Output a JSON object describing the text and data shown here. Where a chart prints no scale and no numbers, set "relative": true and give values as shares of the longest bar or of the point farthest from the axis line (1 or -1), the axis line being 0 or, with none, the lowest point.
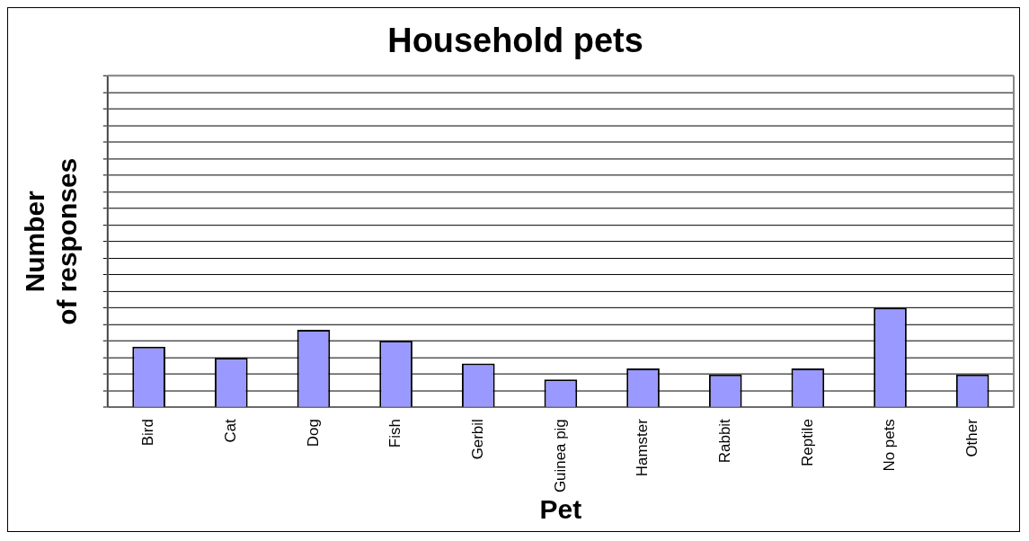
{
  "chart_data": {
    "type": "bar",
    "title": "Household pets",
    "xlabel": "Pet",
    "ylabel": "Number of responses",
    "relative": true,
    "grid": "y",
    "color": "#9999ff",
    "categories": [
      "Bird",
      "Cat",
      "Dog",
      "Fish",
      "Gerbil",
      "Guinea pig",
      "Hamster",
      "Rabbit",
      "Reptile",
      "No pets",
      "Other"
    ],
    "values": [
      0.61,
      0.5,
      0.78,
      0.67,
      0.44,
      0.28,
      0.39,
      0.33,
      0.39,
      1,
      0.33
    ]
  }
}
